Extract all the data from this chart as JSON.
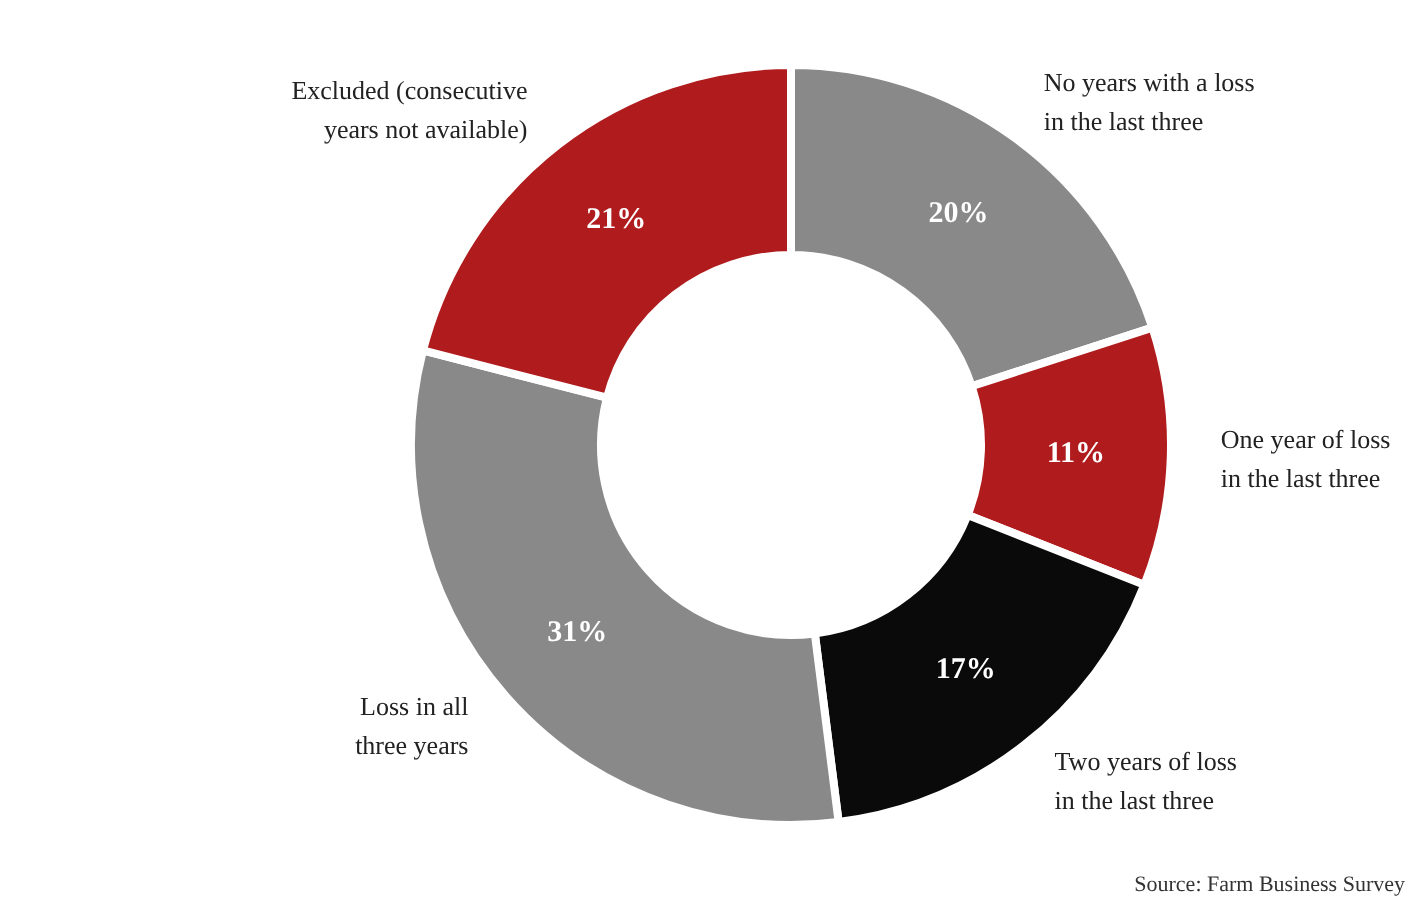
{
  "chart_data": {
    "type": "donut",
    "categories": [
      "No years with a loss\nin the last three",
      "One year of loss\nin the last three",
      "Two years of loss\nin the last three",
      "Loss in all\nthree years",
      "Excluded (consecutive\nyears not available)"
    ],
    "values": [
      20,
      11,
      17,
      31,
      21
    ],
    "colors": [
      "#898989",
      "#b01c1e",
      "#0a0a0a",
      "#898989",
      "#b01c1e"
    ],
    "value_labels": [
      "20%",
      "11%",
      "17%",
      "31%",
      "21%"
    ],
    "annotations": [
      "Source: Farm Business Survey"
    ]
  }
}
